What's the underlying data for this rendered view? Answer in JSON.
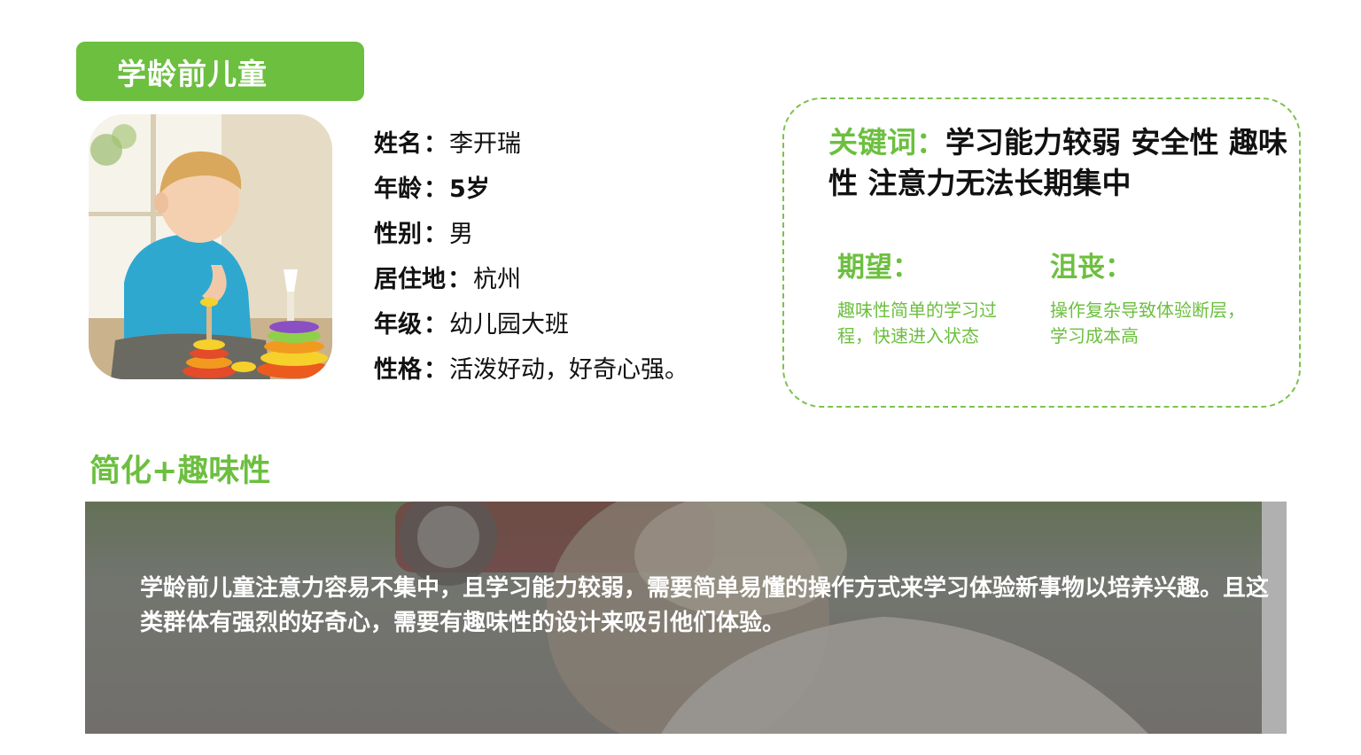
{
  "header": {
    "title": "学龄前儿童"
  },
  "profile": {
    "rows": [
      {
        "key": "姓名",
        "sep": "：",
        "value": "李开瑞"
      },
      {
        "key": "年龄",
        "sep": "：",
        "value": "5岁"
      },
      {
        "key": "性别",
        "sep": "：",
        "value": "男"
      },
      {
        "key": "居住地",
        "sep": "：",
        "value": "杭州"
      },
      {
        "key": "年级",
        "sep": "：",
        "value": "幼儿园大班"
      },
      {
        "key": "性格",
        "sep": "：",
        "value": "活泼好动，好奇心强。"
      }
    ]
  },
  "card": {
    "keywords_label": "关键词：",
    "keywords_text": "学习能力较弱 安全性 趣味性  注意力无法长期集中",
    "hope_title": "期望：",
    "hope_text": "趣味性简单的学习过程，快速进入状态",
    "frustration_title": "沮丧：",
    "frustration_text": "操作复杂导致体验断层，学习成本高"
  },
  "section": {
    "title": "简化+趣味性"
  },
  "banner": {
    "text": "学龄前儿童注意力容易不集中，且学习能力较弱，需要简单易懂的操作方式来学习体验新事物以培养兴趣。且这类群体有强烈的好奇心，需要有趣味性的设计来吸引他们体验。"
  },
  "colors": {
    "accent_green": "#6cbf3f",
    "dashed_border": "#7cc24e",
    "text_dark": "#111111"
  }
}
